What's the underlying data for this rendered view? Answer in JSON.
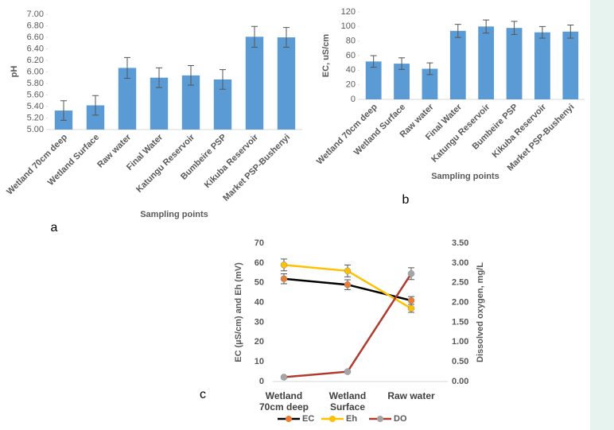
{
  "chart_data": [
    {
      "type": "bar",
      "panel_label": "a",
      "y_label": "pH",
      "x_label": "Sampling points",
      "categories": [
        "Wetland 70cm deep",
        "Wetland Surface",
        "Raw water",
        "Final Water",
        "Katungu Reservoir",
        "Bumbeire PSP",
        "Kikuba Reservoir",
        "Market PSP-Bushenyi"
      ],
      "values": [
        5.33,
        5.42,
        6.07,
        5.9,
        5.94,
        5.87,
        6.61,
        6.6
      ],
      "errors": [
        0.17,
        0.17,
        0.18,
        0.17,
        0.17,
        0.17,
        0.18,
        0.17
      ],
      "color": "#5b9bd5",
      "grid": false,
      "ylim": [
        5,
        7
      ],
      "yticks": [
        {
          "value": 5,
          "label": "5.00"
        },
        {
          "value": 5.2,
          "label": "5.20"
        },
        {
          "value": 5.4,
          "label": "5.40"
        },
        {
          "value": 5.6,
          "label": "5.60"
        },
        {
          "value": 5.8,
          "label": "5.80"
        },
        {
          "value": 6,
          "label": "6.00"
        },
        {
          "value": 6.2,
          "label": "6.20"
        },
        {
          "value": 6.4,
          "label": "6.40"
        },
        {
          "value": 6.6,
          "label": "6.60"
        },
        {
          "value": 6.8,
          "label": "6.80"
        },
        {
          "value": 7,
          "label": "7.00"
        }
      ]
    },
    {
      "type": "bar",
      "panel_label": "b",
      "y_label": "EC, uS/cm",
      "x_label": "Sampling points",
      "categories": [
        "Wetland 70cm deep",
        "Wetland Surface",
        "Raw water",
        "Final Water",
        "Katungu Reservoir",
        "Bumbeire PSP",
        "Kikuba Reservoir",
        "Market PSP-Bushenyi"
      ],
      "values": [
        52,
        49,
        42,
        94,
        100,
        98,
        92,
        93
      ],
      "errors": [
        8,
        8,
        8,
        9,
        9,
        9,
        8,
        9
      ],
      "color": "#5b9bd5",
      "grid": false,
      "ylim": [
        0,
        120
      ],
      "yticks": [
        0,
        20,
        40,
        60,
        80,
        100,
        120
      ]
    },
    {
      "type": "line",
      "panel_label": "c",
      "y_label": "EC (µS/cm)  and Eh (mV)",
      "y2_label": "Dissolved oxygen, mg/L",
      "categories": [
        "Wetland\n70cm deep",
        "Wetland\nSurface",
        "Raw water"
      ],
      "series": [
        {
          "name": "EC",
          "color": "#000000",
          "marker_color": "#ed7d31",
          "values": [
            52,
            49,
            41
          ],
          "errors": [
            2.5,
            2.5,
            2
          ]
        },
        {
          "name": "Eh",
          "color": "#ffc000",
          "marker_color": "#ffc000",
          "values": [
            59,
            56,
            37
          ],
          "errors": [
            3,
            3,
            2
          ]
        },
        {
          "name": "DO",
          "color": "#b03a2e",
          "marker_color": "#a5a5a5",
          "axis": "y2",
          "values": [
            0.11,
            0.25,
            2.73
          ],
          "errors": [
            0.02,
            0.02,
            0.15
          ]
        }
      ],
      "grid": false,
      "legend": "bottom",
      "ylim": [
        0,
        70
      ],
      "yticks": [
        0,
        10,
        20,
        30,
        40,
        50,
        60,
        70
      ],
      "y2lim": [
        0,
        3.5
      ],
      "y2ticks": [
        {
          "value": 0,
          "label": "0.00"
        },
        {
          "value": 0.5,
          "label": "0.50"
        },
        {
          "value": 1,
          "label": "1.00"
        },
        {
          "value": 1.5,
          "label": "1.50"
        },
        {
          "value": 2,
          "label": "2.00"
        },
        {
          "value": 2.5,
          "label": "2.50"
        },
        {
          "value": 3,
          "label": "3.00"
        },
        {
          "value": 3.5,
          "label": "3.50"
        }
      ]
    }
  ]
}
